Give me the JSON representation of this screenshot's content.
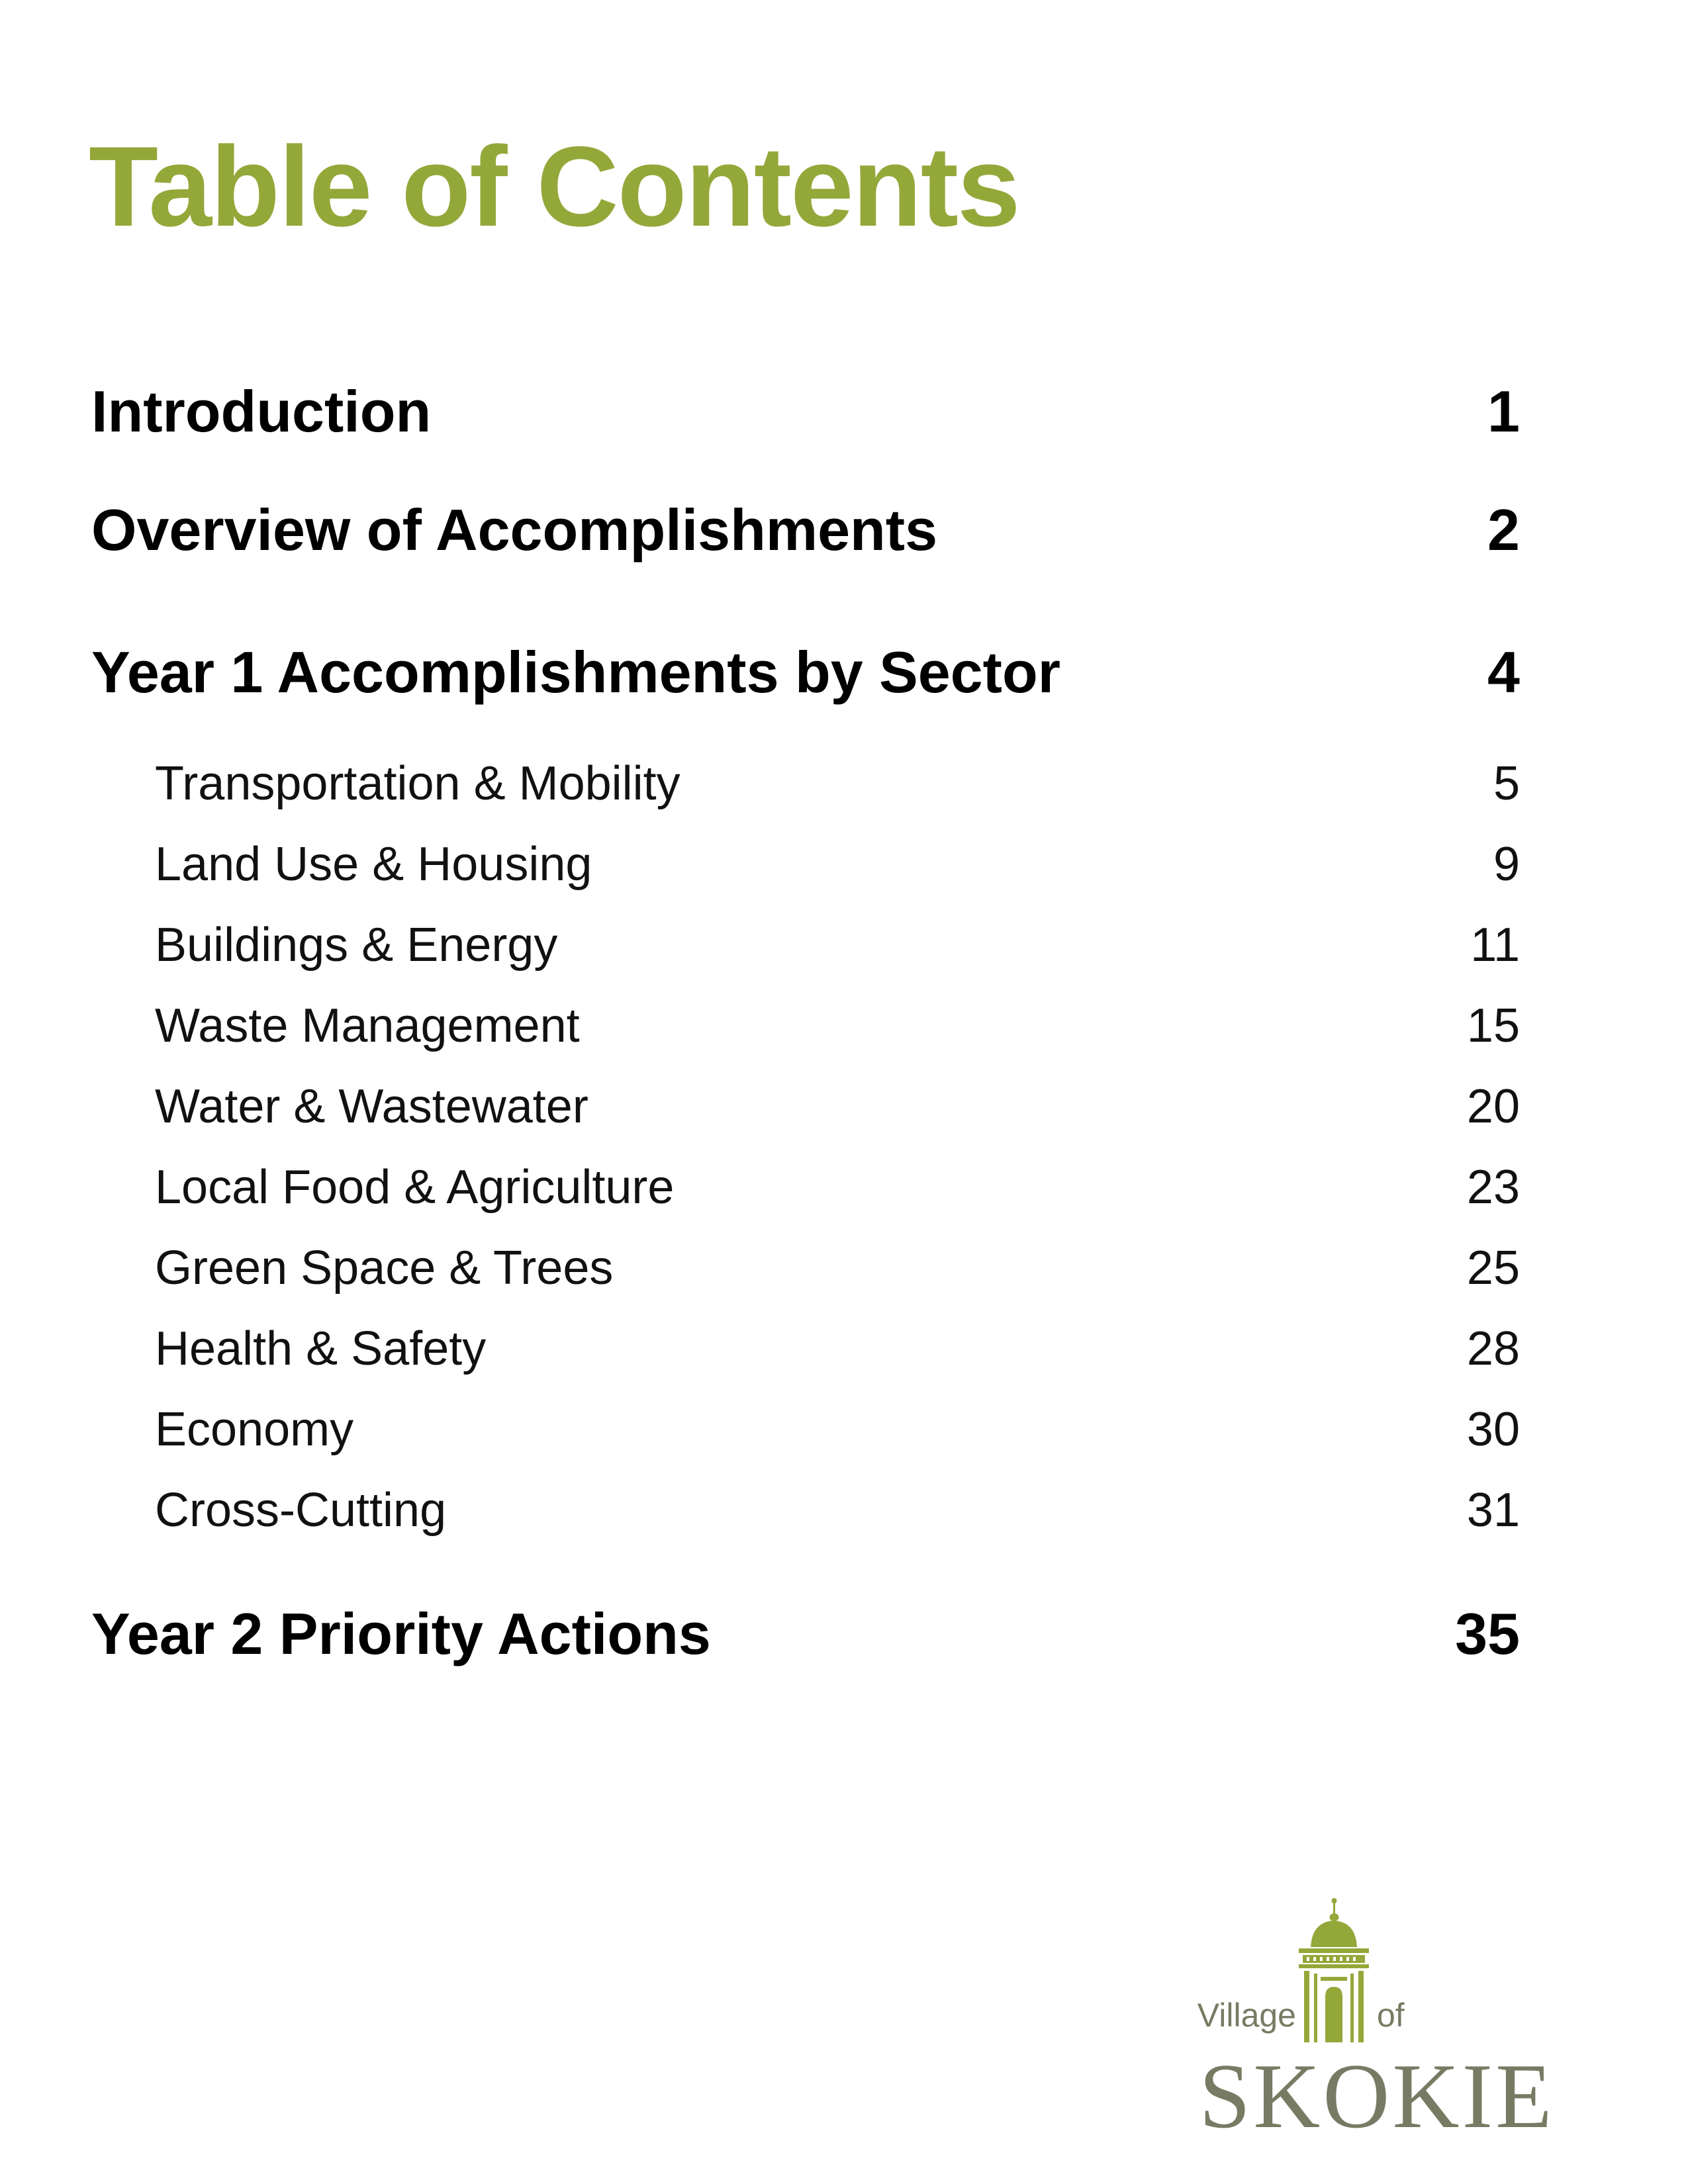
{
  "title": "Table of Contents",
  "entries": [
    {
      "label": "Introduction",
      "page": "1"
    },
    {
      "label": "Overview of Accomplishments",
      "page": "2"
    },
    {
      "label": "Year 1 Accomplishments by Sector",
      "page": "4"
    }
  ],
  "sectors": [
    {
      "label": "Transportation & Mobility",
      "page": "5"
    },
    {
      "label": "Land Use & Housing",
      "page": "9"
    },
    {
      "label": "Buildings & Energy",
      "page": "11"
    },
    {
      "label": "Waste Management",
      "page": "15"
    },
    {
      "label": "Water & Wastewater",
      "page": "20"
    },
    {
      "label": "Local Food & Agriculture",
      "page": "23"
    },
    {
      "label": "Green Space & Trees",
      "page": "25"
    },
    {
      "label": "Health & Safety",
      "page": "28"
    },
    {
      "label": "Economy",
      "page": "30"
    },
    {
      "label": "Cross-Cutting",
      "page": "31"
    }
  ],
  "final_entry": {
    "label": "Year 2 Priority Actions",
    "page": "35"
  },
  "logo": {
    "line1_left": "Village",
    "line1_right": "of",
    "name": "SKOKIE",
    "icon": "dome-tower-icon"
  },
  "colors": {
    "accent": "#94a83a",
    "logo_gray": "#777b63"
  }
}
